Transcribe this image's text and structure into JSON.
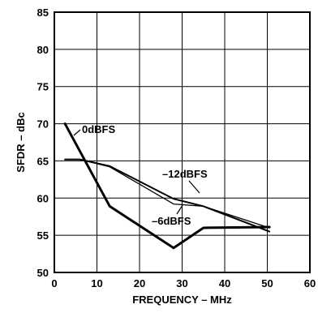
{
  "chart_data": {
    "type": "line",
    "title": "",
    "xlabel": "FREQUENCY – MHz",
    "ylabel": "SFDR – dBc",
    "xlim": [
      0,
      60
    ],
    "ylim": [
      50,
      85
    ],
    "x_ticks": [
      "0",
      "10",
      "20",
      "30",
      "40",
      "50",
      "60"
    ],
    "y_ticks": [
      "50",
      "55",
      "60",
      "65",
      "70",
      "75",
      "80",
      "85"
    ],
    "grid": true,
    "series": [
      {
        "name": "0dBFS",
        "stroke": "heavy",
        "x": [
          2.5,
          13,
          28,
          35,
          50.5
        ],
        "y": [
          70,
          58.9,
          53.3,
          56,
          56.1
        ]
      },
      {
        "name": "–6dBFS",
        "stroke": "light",
        "x": [
          2.5,
          6,
          13,
          28,
          35,
          50.5
        ],
        "y": [
          65.2,
          65.2,
          64.2,
          59.2,
          58.9,
          56
        ]
      },
      {
        "name": "–12dBFS",
        "stroke": "medium",
        "x": [
          2.5,
          6,
          13,
          28,
          35,
          50.5
        ],
        "y": [
          65.2,
          65.2,
          64.3,
          59.9,
          58.9,
          55.5
        ]
      }
    ],
    "annotations": [
      {
        "text": "0dBFS",
        "series": "0dBFS"
      },
      {
        "text": "–12dBFS",
        "series": "–12dBFS"
      },
      {
        "text": "–6dBFS",
        "series": "–6dBFS"
      }
    ]
  }
}
